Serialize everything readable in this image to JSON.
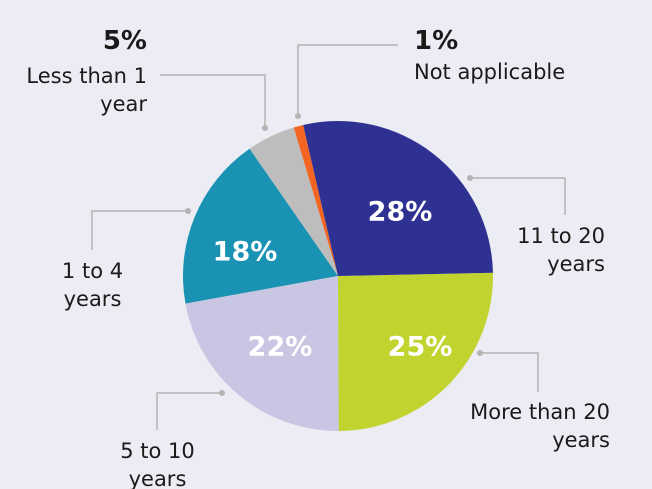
{
  "chart_data": {
    "type": "pie",
    "categories": [
      "11 to 20 years",
      "More than 20 years",
      "5 to 10 years",
      "1 to 4 years",
      "Less than 1 year",
      "Not applicable"
    ],
    "values": [
      28,
      25,
      22,
      18,
      5,
      1
    ],
    "value_labels": [
      "28%",
      "25%",
      "22%",
      "18%",
      "5%",
      "1%"
    ],
    "colors": [
      "#2e3192",
      "#c1d32f",
      "#c9c6e3",
      "#1a92b4",
      "#bdbdbd",
      "#f26522"
    ]
  }
}
